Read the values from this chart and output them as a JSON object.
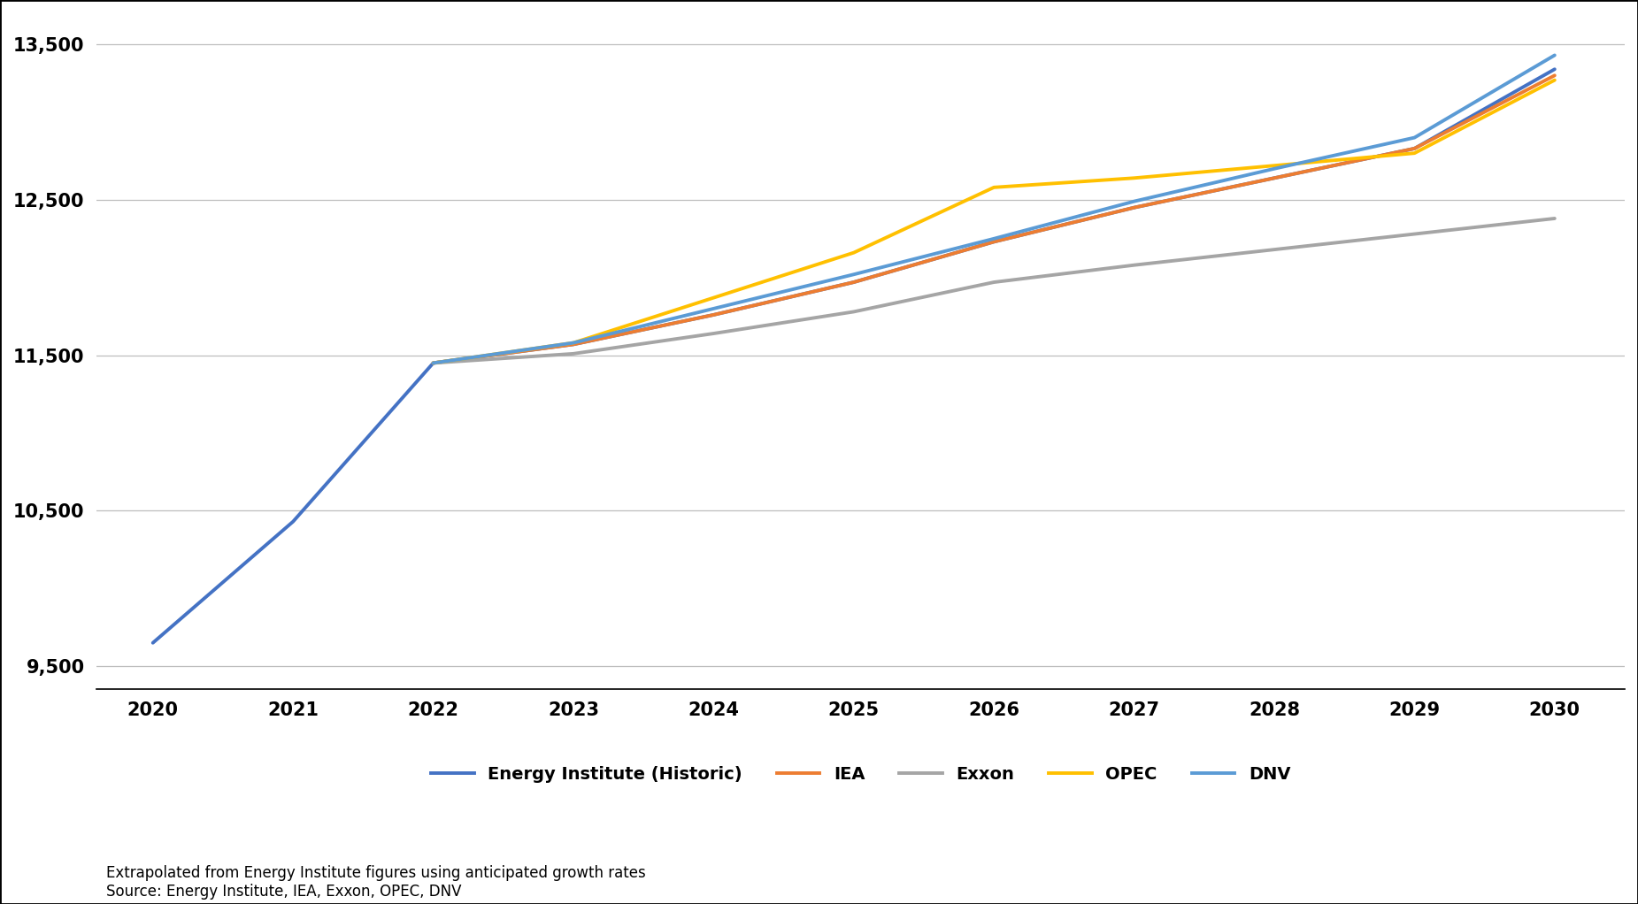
{
  "xlim": [
    2019.6,
    2030.5
  ],
  "ylim": [
    9350,
    13700
  ],
  "yticks": [
    9500,
    10500,
    11500,
    12500,
    13500
  ],
  "xticks": [
    2020,
    2021,
    2022,
    2023,
    2024,
    2025,
    2026,
    2027,
    2028,
    2029,
    2030
  ],
  "series": {
    "Energy Institute (Historic)": {
      "color": "#4472C4",
      "linewidth": 2.8,
      "x": [
        2020,
        2021,
        2022,
        2023,
        2024,
        2025,
        2026,
        2027,
        2028,
        2029,
        2030
      ],
      "y": [
        9650,
        10430,
        11450,
        11570,
        11760,
        11970,
        12230,
        12450,
        12640,
        12830,
        13340
      ]
    },
    "IEA": {
      "color": "#ED7D31",
      "linewidth": 2.8,
      "x": [
        2022,
        2023,
        2024,
        2025,
        2026,
        2027,
        2028,
        2029,
        2030
      ],
      "y": [
        11450,
        11570,
        11760,
        11970,
        12230,
        12450,
        12640,
        12830,
        13300
      ]
    },
    "Exxon": {
      "color": "#A5A5A5",
      "linewidth": 2.8,
      "x": [
        2022,
        2023,
        2024,
        2025,
        2026,
        2027,
        2028,
        2029,
        2030
      ],
      "y": [
        11450,
        11510,
        11640,
        11780,
        11970,
        12080,
        12180,
        12280,
        12380
      ]
    },
    "OPEC": {
      "color": "#FFC000",
      "linewidth": 2.8,
      "x": [
        2022,
        2023,
        2024,
        2025,
        2026,
        2027,
        2028,
        2029,
        2030
      ],
      "y": [
        11450,
        11580,
        11870,
        12160,
        12580,
        12640,
        12720,
        12800,
        13270
      ]
    },
    "DNV": {
      "color": "#5B9BD5",
      "linewidth": 2.8,
      "x": [
        2022,
        2023,
        2024,
        2025,
        2026,
        2027,
        2028,
        2029,
        2030
      ],
      "y": [
        11450,
        11580,
        11800,
        12020,
        12250,
        12490,
        12700,
        12900,
        13430
      ]
    }
  },
  "legend_labels": [
    "Energy Institute (Historic)",
    "IEA",
    "Exxon",
    "OPEC",
    "DNV"
  ],
  "legend_colors": [
    "#4472C4",
    "#ED7D31",
    "#A5A5A5",
    "#FFC000",
    "#5B9BD5"
  ],
  "footnote": "Extrapolated from Energy Institute figures using anticipated growth rates\nSource: Energy Institute, IEA, Exxon, OPEC, DNV",
  "background_color": "#FFFFFF",
  "grid_color": "#BEBEBE",
  "border_color": "#000000"
}
